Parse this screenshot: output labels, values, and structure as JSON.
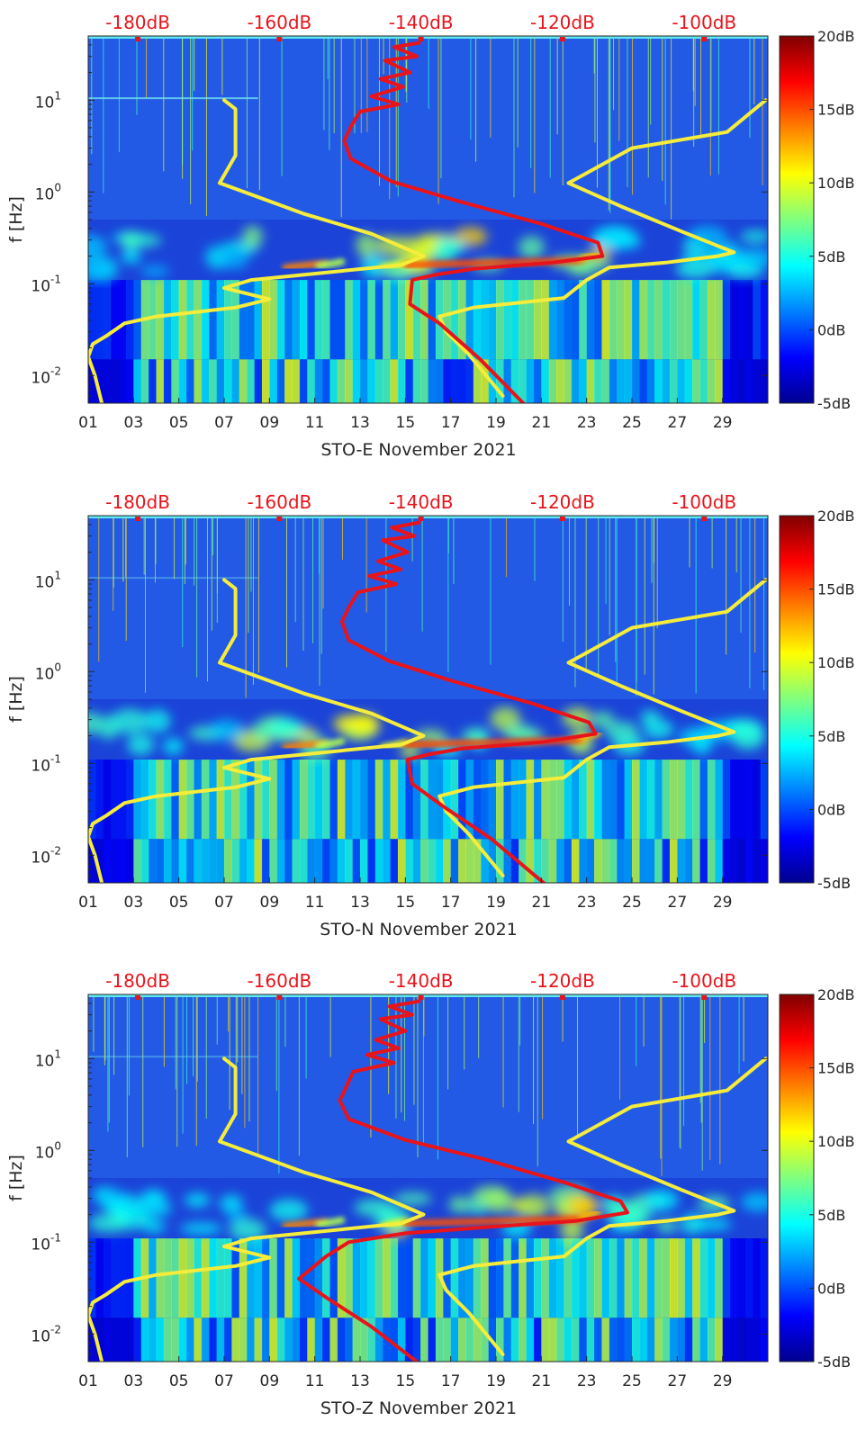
{
  "chart_data": [
    {
      "type": "heatmap",
      "title": "",
      "xlabel": "STO-E November 2021",
      "ylabel": "f [Hz]",
      "x_ticks": [
        "01",
        "03",
        "05",
        "07",
        "09",
        "11",
        "13",
        "15",
        "17",
        "19",
        "21",
        "23",
        "25",
        "27",
        "29"
      ],
      "x_range_days": [
        1,
        31
      ],
      "y_scale": "log",
      "y_range_hz": [
        0.005,
        50
      ],
      "y_ticks": [
        {
          "value": 0.01,
          "base": "10",
          "exp": "-2"
        },
        {
          "value": 0.1,
          "base": "10",
          "exp": "-1"
        },
        {
          "value": 1,
          "base": "10",
          "exp": "0"
        },
        {
          "value": 10,
          "base": "10",
          "exp": "1"
        }
      ],
      "top_axis_ticks": [
        "-180dB",
        "-160dB",
        "-140dB",
        "-120dB",
        "-100dB"
      ],
      "top_axis_range_db": [
        -187,
        -91
      ],
      "colorbar": {
        "range_db": [
          -5,
          20
        ],
        "ticks": [
          "20dB",
          "15dB",
          "10dB",
          "5dB",
          "0dB",
          "-5dB"
        ]
      },
      "series": [
        {
          "name": "noise-model-limits",
          "color": "#f5ec3b",
          "segments": [
            {
              "points": [
                [
                  7.0,
                  10
                ],
                [
                  7.5,
                  8
                ],
                [
                  7.5,
                  2.5
                ],
                [
                  6.8,
                  1.25
                ],
                [
                  10.5,
                  0.58
                ],
                [
                  13.5,
                  0.35
                ],
                [
                  15.8,
                  0.2
                ],
                [
                  14.8,
                  0.16
                ],
                [
                  8.2,
                  0.11
                ],
                [
                  7.0,
                  0.09
                ],
                [
                  9.0,
                  0.068
                ],
                [
                  7.5,
                  0.055
                ],
                [
                  4.0,
                  0.044
                ],
                [
                  2.6,
                  0.037
                ],
                [
                  1.8,
                  0.027
                ],
                [
                  1.2,
                  0.022
                ],
                [
                  1.0,
                  0.016
                ],
                [
                  1.3,
                  0.01
                ],
                [
                  1.6,
                  0.005
                ]
              ]
            },
            {
              "points": [
                [
                  30.9,
                  10
                ],
                [
                  29.2,
                  4.5
                ],
                [
                  25.0,
                  3.0
                ],
                [
                  22.2,
                  1.25
                ],
                [
                  24.5,
                  0.7
                ],
                [
                  27.2,
                  0.37
                ],
                [
                  29.5,
                  0.22
                ],
                [
                  28.8,
                  0.2
                ],
                [
                  26.5,
                  0.17
                ],
                [
                  24.0,
                  0.15
                ],
                [
                  23.0,
                  0.11
                ],
                [
                  22.0,
                  0.07
                ],
                [
                  18.0,
                  0.055
                ],
                [
                  16.5,
                  0.044
                ],
                [
                  16.8,
                  0.03
                ],
                [
                  17.8,
                  0.017
                ],
                [
                  19.3,
                  0.006
                ]
              ]
            }
          ]
        },
        {
          "name": "spectrum-level",
          "color": "#e8141b",
          "points": [
            [
              15.6,
              42
            ],
            [
              14.5,
              38
            ],
            [
              15.5,
              30
            ],
            [
              14.1,
              27
            ],
            [
              15.2,
              20
            ],
            [
              13.9,
              17
            ],
            [
              14.9,
              14
            ],
            [
              13.5,
              11
            ],
            [
              14.7,
              9
            ],
            [
              13.0,
              7.5
            ],
            [
              12.6,
              5.2
            ],
            [
              12.3,
              3.6
            ],
            [
              12.6,
              2.3
            ],
            [
              14.4,
              1.3
            ],
            [
              17.3,
              0.8
            ],
            [
              21.0,
              0.45
            ],
            [
              23.5,
              0.28
            ],
            [
              23.7,
              0.2
            ],
            [
              21.5,
              0.17
            ],
            [
              18.0,
              0.145
            ],
            [
              16.3,
              0.125
            ],
            [
              15.3,
              0.11
            ],
            [
              15.2,
              0.06
            ],
            [
              16.5,
              0.037
            ],
            [
              18.3,
              0.015
            ],
            [
              20.2,
              0.005
            ]
          ]
        }
      ]
    },
    {
      "type": "heatmap",
      "title": "",
      "xlabel": "STO-N November 2021",
      "ylabel": "f [Hz]",
      "x_ticks": [
        "01",
        "03",
        "05",
        "07",
        "09",
        "11",
        "13",
        "15",
        "17",
        "19",
        "21",
        "23",
        "25",
        "27",
        "29"
      ],
      "x_range_days": [
        1,
        31
      ],
      "y_scale": "log",
      "y_range_hz": [
        0.005,
        50
      ],
      "y_ticks": [
        {
          "value": 0.01,
          "base": "10",
          "exp": "-2"
        },
        {
          "value": 0.1,
          "base": "10",
          "exp": "-1"
        },
        {
          "value": 1,
          "base": "10",
          "exp": "0"
        },
        {
          "value": 10,
          "base": "10",
          "exp": "1"
        }
      ],
      "top_axis_ticks": [
        "-180dB",
        "-160dB",
        "-140dB",
        "-120dB",
        "-100dB"
      ],
      "top_axis_range_db": [
        -187,
        -91
      ],
      "colorbar": {
        "range_db": [
          -5,
          20
        ],
        "ticks": [
          "20dB",
          "15dB",
          "10dB",
          "5dB",
          "0dB",
          "-5dB"
        ]
      },
      "series": [
        {
          "name": "noise-model-limits",
          "color": "#f5ec3b",
          "segments": [
            {
              "points": [
                [
                  7.0,
                  10
                ],
                [
                  7.5,
                  8
                ],
                [
                  7.5,
                  2.5
                ],
                [
                  6.8,
                  1.25
                ],
                [
                  10.5,
                  0.58
                ],
                [
                  13.5,
                  0.35
                ],
                [
                  15.8,
                  0.2
                ],
                [
                  14.8,
                  0.16
                ],
                [
                  8.2,
                  0.11
                ],
                [
                  7.0,
                  0.09
                ],
                [
                  9.0,
                  0.068
                ],
                [
                  7.5,
                  0.055
                ],
                [
                  4.0,
                  0.044
                ],
                [
                  2.6,
                  0.037
                ],
                [
                  1.8,
                  0.027
                ],
                [
                  1.2,
                  0.022
                ],
                [
                  1.0,
                  0.016
                ],
                [
                  1.3,
                  0.01
                ],
                [
                  1.6,
                  0.005
                ]
              ]
            },
            {
              "points": [
                [
                  30.9,
                  10
                ],
                [
                  29.2,
                  4.5
                ],
                [
                  25.0,
                  3.0
                ],
                [
                  22.2,
                  1.25
                ],
                [
                  24.5,
                  0.7
                ],
                [
                  27.2,
                  0.37
                ],
                [
                  29.5,
                  0.22
                ],
                [
                  28.8,
                  0.2
                ],
                [
                  26.5,
                  0.17
                ],
                [
                  24.0,
                  0.15
                ],
                [
                  23.0,
                  0.11
                ],
                [
                  22.0,
                  0.07
                ],
                [
                  18.0,
                  0.055
                ],
                [
                  16.5,
                  0.044
                ],
                [
                  16.8,
                  0.03
                ],
                [
                  17.8,
                  0.017
                ],
                [
                  19.3,
                  0.006
                ]
              ]
            }
          ]
        },
        {
          "name": "spectrum-level",
          "color": "#e8141b",
          "points": [
            [
              15.6,
              42
            ],
            [
              14.4,
              37
            ],
            [
              15.4,
              30
            ],
            [
              14.0,
              27
            ],
            [
              15.1,
              20
            ],
            [
              13.8,
              16
            ],
            [
              14.8,
              13
            ],
            [
              13.4,
              11
            ],
            [
              14.6,
              9
            ],
            [
              12.9,
              7.3
            ],
            [
              12.5,
              5.0
            ],
            [
              12.2,
              3.5
            ],
            [
              12.5,
              2.2
            ],
            [
              14.3,
              1.3
            ],
            [
              17.0,
              0.8
            ],
            [
              20.6,
              0.45
            ],
            [
              23.1,
              0.28
            ],
            [
              23.4,
              0.21
            ],
            [
              21.0,
              0.17
            ],
            [
              17.5,
              0.145
            ],
            [
              16.0,
              0.125
            ],
            [
              15.1,
              0.11
            ],
            [
              15.3,
              0.06
            ],
            [
              16.6,
              0.035
            ],
            [
              18.8,
              0.015
            ],
            [
              21.1,
              0.005
            ]
          ]
        }
      ]
    },
    {
      "type": "heatmap",
      "title": "",
      "xlabel": "STO-Z November 2021",
      "ylabel": "f [Hz]",
      "x_ticks": [
        "01",
        "03",
        "05",
        "07",
        "09",
        "11",
        "13",
        "15",
        "17",
        "19",
        "21",
        "23",
        "25",
        "27",
        "29"
      ],
      "x_range_days": [
        1,
        31
      ],
      "y_scale": "log",
      "y_range_hz": [
        0.005,
        50
      ],
      "y_ticks": [
        {
          "value": 0.01,
          "base": "10",
          "exp": "-2"
        },
        {
          "value": 0.1,
          "base": "10",
          "exp": "-1"
        },
        {
          "value": 1,
          "base": "10",
          "exp": "0"
        },
        {
          "value": 10,
          "base": "10",
          "exp": "1"
        }
      ],
      "top_axis_ticks": [
        "-180dB",
        "-160dB",
        "-140dB",
        "-120dB",
        "-100dB"
      ],
      "top_axis_range_db": [
        -187,
        -91
      ],
      "colorbar": {
        "range_db": [
          -5,
          20
        ],
        "ticks": [
          "20dB",
          "15dB",
          "10dB",
          "5dB",
          "0dB",
          "-5dB"
        ]
      },
      "series": [
        {
          "name": "noise-model-limits",
          "color": "#f5ec3b",
          "segments": [
            {
              "points": [
                [
                  7.0,
                  10
                ],
                [
                  7.5,
                  8
                ],
                [
                  7.5,
                  2.5
                ],
                [
                  6.8,
                  1.25
                ],
                [
                  10.5,
                  0.58
                ],
                [
                  13.5,
                  0.35
                ],
                [
                  15.8,
                  0.2
                ],
                [
                  14.8,
                  0.16
                ],
                [
                  8.2,
                  0.11
                ],
                [
                  7.0,
                  0.09
                ],
                [
                  9.0,
                  0.068
                ],
                [
                  7.5,
                  0.055
                ],
                [
                  4.0,
                  0.044
                ],
                [
                  2.6,
                  0.037
                ],
                [
                  1.8,
                  0.027
                ],
                [
                  1.2,
                  0.022
                ],
                [
                  1.0,
                  0.016
                ],
                [
                  1.3,
                  0.01
                ],
                [
                  1.6,
                  0.005
                ]
              ]
            },
            {
              "points": [
                [
                  30.9,
                  10
                ],
                [
                  29.2,
                  4.5
                ],
                [
                  25.0,
                  3.0
                ],
                [
                  22.2,
                  1.25
                ],
                [
                  24.5,
                  0.7
                ],
                [
                  27.2,
                  0.37
                ],
                [
                  29.5,
                  0.22
                ],
                [
                  28.8,
                  0.2
                ],
                [
                  26.5,
                  0.17
                ],
                [
                  24.0,
                  0.15
                ],
                [
                  23.0,
                  0.11
                ],
                [
                  22.0,
                  0.07
                ],
                [
                  18.0,
                  0.055
                ],
                [
                  16.5,
                  0.044
                ],
                [
                  16.8,
                  0.03
                ],
                [
                  17.8,
                  0.017
                ],
                [
                  19.3,
                  0.006
                ]
              ]
            }
          ]
        },
        {
          "name": "spectrum-level",
          "color": "#e8141b",
          "points": [
            [
              15.6,
              42
            ],
            [
              14.3,
              37
            ],
            [
              15.3,
              30
            ],
            [
              13.9,
              27
            ],
            [
              15.0,
              20
            ],
            [
              13.7,
              16
            ],
            [
              14.7,
              13
            ],
            [
              13.3,
              11
            ],
            [
              14.5,
              9
            ],
            [
              12.7,
              7.2
            ],
            [
              12.4,
              5.0
            ],
            [
              12.1,
              3.5
            ],
            [
              12.5,
              2.2
            ],
            [
              15.0,
              1.3
            ],
            [
              18.5,
              0.8
            ],
            [
              22.0,
              0.45
            ],
            [
              24.5,
              0.28
            ],
            [
              24.8,
              0.21
            ],
            [
              22.5,
              0.17
            ],
            [
              18.5,
              0.145
            ],
            [
              15.0,
              0.125
            ],
            [
              12.5,
              0.1
            ],
            [
              11.5,
              0.07
            ],
            [
              10.3,
              0.04
            ],
            [
              11.5,
              0.025
            ],
            [
              13.5,
              0.012
            ],
            [
              15.5,
              0.005
            ]
          ]
        }
      ]
    }
  ]
}
